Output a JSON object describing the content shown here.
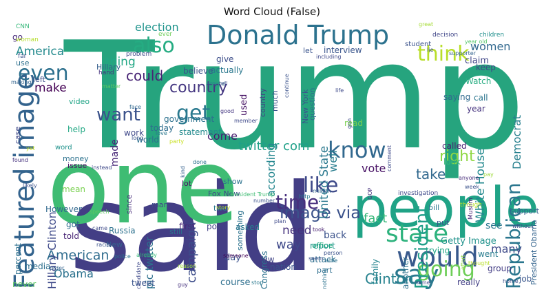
{
  "title": "Word Cloud (False)",
  "words": [
    {
      "text": "Trump",
      "color": "#26a47e"
    },
    {
      "text": "said",
      "color": "#433e85"
    },
    {
      "text": "one",
      "color": "#3fbc73"
    },
    {
      "text": "people",
      "color": "#20a386"
    },
    {
      "text": "Donald Trump",
      "color": "#2c728e"
    },
    {
      "text": "Featured image",
      "color": "#33638d"
    },
    {
      "text": "would",
      "color": "#38598c"
    },
    {
      "text": "say",
      "color": "#2a788e"
    },
    {
      "text": "state",
      "color": "#2db27d"
    },
    {
      "text": "know",
      "color": "#31688e"
    },
    {
      "text": "going",
      "color": "#6ece58"
    },
    {
      "text": "like",
      "color": "#3e4a89"
    },
    {
      "text": "time",
      "color": "#472f7d"
    },
    {
      "text": "think",
      "color": "#b8de29"
    },
    {
      "text": "President",
      "color": "#1f9e89"
    },
    {
      "text": "Republican",
      "color": "#2a768e"
    },
    {
      "text": "want",
      "color": "#3b528b"
    },
    {
      "text": "also",
      "color": "#25ac82"
    },
    {
      "text": "even",
      "color": "#2d708e"
    },
    {
      "text": "get",
      "color": "#29798e"
    },
    {
      "text": "image via",
      "color": "#3b528b"
    },
    {
      "text": "country",
      "color": "#453781"
    },
    {
      "text": "right",
      "color": "#8fd744"
    },
    {
      "text": "take",
      "color": "#31688e"
    },
    {
      "text": "Clinton",
      "color": "#26828e"
    },
    {
      "text": "American",
      "color": "#2f6c8e"
    },
    {
      "text": "could",
      "color": "#482475"
    },
    {
      "text": "way",
      "color": "#3e4989"
    },
    {
      "text": "fact",
      "color": "#35b779"
    },
    {
      "text": "campaign",
      "color": "#3d4d8a"
    },
    {
      "text": "twitter com",
      "color": "#1fa088"
    },
    {
      "text": "need",
      "color": "#46327e"
    },
    {
      "text": "women",
      "color": "#31688e"
    },
    {
      "text": "election",
      "color": "#1f948c"
    },
    {
      "text": "America",
      "color": "#238a8d"
    },
    {
      "text": "make",
      "color": "#440154"
    },
    {
      "text": "thing",
      "color": "#22a785"
    },
    {
      "text": "Hillary Clinton",
      "color": "#3e4989"
    },
    {
      "text": "United State",
      "color": "#2a788e"
    },
    {
      "text": "according",
      "color": "#24868e"
    },
    {
      "text": "White House",
      "color": "#23898e"
    },
    {
      "text": "Democrat",
      "color": "#27808e"
    },
    {
      "text": "come",
      "color": "#481d6f"
    },
    {
      "text": "well",
      "color": "#287d8e"
    },
    {
      "text": "vote",
      "color": "#471164"
    },
    {
      "text": "Obama",
      "color": "#2c728e"
    },
    {
      "text": "many",
      "color": "#3e4a89"
    },
    {
      "text": "see",
      "color": "#2a778e"
    },
    {
      "text": "made",
      "color": "#482878"
    },
    {
      "text": "pic twitter",
      "color": "#2d708e"
    },
    {
      "text": "keep",
      "color": "#3e4989"
    },
    {
      "text": "claim",
      "color": "#404688"
    },
    {
      "text": "used",
      "color": "#471365"
    },
    {
      "text": "actually",
      "color": "#2a788e"
    },
    {
      "text": "interview",
      "color": "#39558c"
    },
    {
      "text": "Hillary",
      "color": "#355f8d"
    },
    {
      "text": "believe",
      "color": "#3a538b"
    },
    {
      "text": "give",
      "color": "#3d4e8a"
    },
    {
      "text": "country",
      "color": "#433e85"
    },
    {
      "text": "go",
      "color": "#472a7a"
    },
    {
      "text": "Getty Image",
      "color": "#20928c"
    },
    {
      "text": "report",
      "color": "#1f968b"
    },
    {
      "text": "attack",
      "color": "#2e6e8e"
    },
    {
      "text": "back",
      "color": "#3b528b"
    },
    {
      "text": "Russia",
      "color": "#2c718e"
    },
    {
      "text": "point",
      "color": "#424186"
    },
    {
      "text": "asked",
      "color": "#2a778e"
    },
    {
      "text": "first",
      "color": "#482677"
    },
    {
      "text": "still",
      "color": "#2b748e"
    },
    {
      "text": "Congress",
      "color": "#2c728e"
    },
    {
      "text": "day",
      "color": "#3b528b"
    },
    {
      "text": "law",
      "color": "#414487"
    },
    {
      "text": "nation",
      "color": "#3b528b"
    },
    {
      "text": "course",
      "color": "#2e6f8e"
    },
    {
      "text": "tweet",
      "color": "#3a548c"
    },
    {
      "text": "really",
      "color": "#423f85"
    },
    {
      "text": "job",
      "color": "#39568c"
    },
    {
      "text": "group",
      "color": "#433d84"
    },
    {
      "text": "went",
      "color": "#287c8e"
    },
    {
      "text": "support",
      "color": "#34608d"
    },
    {
      "text": "look",
      "color": "#36b877"
    },
    {
      "text": "called",
      "color": "#482071"
    },
    {
      "text": "another",
      "color": "#2d708e"
    },
    {
      "text": "family",
      "color": "#25848e"
    },
    {
      "text": "trying",
      "color": "#20a486"
    },
    {
      "text": "saying",
      "color": "#306a8e"
    },
    {
      "text": "year",
      "color": "#46337f"
    },
    {
      "text": "call",
      "color": "#2b758e"
    },
    {
      "text": "Watch",
      "color": "#27ad81"
    },
    {
      "text": "government",
      "color": "#2c718e"
    },
    {
      "text": "today",
      "color": "#2e6e8e"
    },
    {
      "text": "world",
      "color": "#2d708e"
    },
    {
      "text": "work",
      "color": "#3f4889"
    },
    {
      "text": "statement",
      "color": "#238a8d"
    },
    {
      "text": "help",
      "color": "#22a884"
    },
    {
      "text": "word",
      "color": "#20928c"
    },
    {
      "text": "money",
      "color": "#2c728e"
    },
    {
      "text": "issue",
      "color": "#471365"
    },
    {
      "text": "mean",
      "color": "#7ad151"
    },
    {
      "text": "However",
      "color": "#31688e"
    },
    {
      "text": "got",
      "color": "#2f6b8e"
    },
    {
      "text": "told",
      "color": "#482475"
    },
    {
      "text": "media",
      "color": "#2e6f8e"
    },
    {
      "text": "never",
      "color": "#5ec962"
    },
    {
      "text": "lot",
      "color": "#470e61"
    },
    {
      "text": "show",
      "color": "#2c728e"
    },
    {
      "text": "Fox New",
      "color": "#3e4989"
    },
    {
      "text": "man",
      "color": "#3e4a89"
    },
    {
      "text": "since",
      "color": "#472d7b"
    },
    {
      "text": "two",
      "color": "#2a788e"
    },
    {
      "text": "something",
      "color": "#2c728e"
    },
    {
      "text": "office",
      "color": "#25ac82"
    },
    {
      "text": "bill",
      "color": "#2a788e"
    },
    {
      "text": "put",
      "color": "#39568c"
    },
    {
      "text": "part",
      "color": "#2e6e8e"
    },
    {
      "text": "New",
      "color": "#34618d"
    },
    {
      "text": "read",
      "color": "#7ad151"
    },
    {
      "text": "New York",
      "color": "#39568c"
    },
    {
      "text": "much",
      "color": "#3b528b"
    },
    {
      "text": "question",
      "color": "#2f6b8e"
    },
    {
      "text": "let",
      "color": "#3a548c"
    },
    {
      "text": "video",
      "color": "#20a486"
    },
    {
      "text": "left",
      "color": "#3c4f8a"
    },
    {
      "text": "use",
      "color": "#2d708e"
    },
    {
      "text": "case",
      "color": "#3f4889"
    },
    {
      "text": "percent",
      "color": "#2d708e"
    },
    {
      "text": "President Obama",
      "color": "#33638d"
    },
    {
      "text": "children",
      "color": "#21908d"
    },
    {
      "text": "year old",
      "color": "#52c569"
    },
    {
      "text": "decision",
      "color": "#404688"
    },
    {
      "text": "great",
      "color": "#a5db36"
    },
    {
      "text": "student",
      "color": "#3b528b"
    },
    {
      "text": "ever",
      "color": "#6ece58"
    },
    {
      "text": "CNN",
      "color": "#35b779"
    },
    {
      "text": "woman",
      "color": "#b5de2b"
    },
    {
      "text": "far",
      "color": "#3b528b"
    },
    {
      "text": "making",
      "color": "#33638d"
    },
    {
      "text": "hand",
      "color": "#46327e"
    },
    {
      "text": "matter",
      "color": "#5ec962"
    },
    {
      "text": "problem",
      "color": "#3e4a89"
    },
    {
      "text": "around",
      "color": "#2a788e"
    },
    {
      "text": "tell",
      "color": "#3e4989"
    },
    {
      "text": "face",
      "color": "#31688e"
    },
    {
      "text": "party",
      "color": "#c8e020"
    },
    {
      "text": "good",
      "color": "#453781"
    },
    {
      "text": "member",
      "color": "#3e4989"
    },
    {
      "text": "love",
      "color": "#2a788e"
    },
    {
      "text": "done",
      "color": "#2c728e"
    },
    {
      "text": "kind",
      "color": "#34618d"
    },
    {
      "text": "long",
      "color": "#3b528b"
    },
    {
      "text": "instead",
      "color": "#3e4989"
    },
    {
      "text": "yet",
      "color": "#c8e020"
    },
    {
      "text": "found",
      "color": "#46327e"
    },
    {
      "text": "likely",
      "color": "#3b528b"
    },
    {
      "text": "speech",
      "color": "#5ec962"
    },
    {
      "text": "came",
      "color": "#3e4a89"
    },
    {
      "text": "racist",
      "color": "#3b528b"
    },
    {
      "text": "already",
      "color": "#35b779"
    },
    {
      "text": "order",
      "color": "#33638d"
    },
    {
      "text": "police",
      "color": "#2c728e"
    },
    {
      "text": "candidate",
      "color": "#3e4989"
    },
    {
      "text": "guy",
      "color": "#46327e"
    },
    {
      "text": "stop",
      "color": "#2a788e"
    },
    {
      "text": "reason",
      "color": "#9fda3a"
    },
    {
      "text": "President Trump",
      "color": "#3fbc73"
    },
    {
      "text": "story",
      "color": "#b8de29"
    },
    {
      "text": "someone",
      "color": "#440154"
    },
    {
      "text": "number",
      "color": "#3b528b"
    },
    {
      "text": "plan",
      "color": "#3e4989"
    },
    {
      "text": "took",
      "color": "#482071"
    },
    {
      "text": "person",
      "color": "#3b528b"
    },
    {
      "text": "able",
      "color": "#2c728e"
    },
    {
      "text": "seem",
      "color": "#3b528b"
    },
    {
      "text": "nothing",
      "color": "#2c728e"
    },
    {
      "text": "http",
      "color": "#2a788e"
    },
    {
      "text": "million",
      "color": "#33638d"
    },
    {
      "text": "life",
      "color": "#3e4989"
    },
    {
      "text": "gun",
      "color": "#3e4a89"
    },
    {
      "text": "GOP",
      "color": "#46327e"
    },
    {
      "text": "including",
      "color": "#3e4989"
    },
    {
      "text": "continue",
      "color": "#3b528b"
    },
    {
      "text": "lie",
      "color": "#3b528b"
    },
    {
      "text": "supporter",
      "color": "#33638d"
    },
    {
      "text": "comment",
      "color": "#3e4989"
    },
    {
      "text": "anyone",
      "color": "#472d7b"
    },
    {
      "text": "week",
      "color": "#3b528b"
    },
    {
      "text": "pay",
      "color": "#9fda3a"
    },
    {
      "text": "though",
      "color": "#b8de29"
    },
    {
      "text": "Muslim",
      "color": "#482475"
    },
    {
      "text": "without",
      "color": "#3e4989"
    },
    {
      "text": "effort",
      "color": "#8fd744"
    },
    {
      "text": "thought",
      "color": "#b8de29"
    },
    {
      "text": "home",
      "color": "#3b528b"
    },
    {
      "text": "name",
      "color": "#3e4989"
    },
    {
      "text": "investigation",
      "color": "#3e4989"
    },
    {
      "text": "end",
      "color": "#3e4989"
    },
    {
      "text": "stand",
      "color": "#3e4989"
    },
    {
      "text": "ever",
      "color": "#1f948c"
    }
  ]
}
